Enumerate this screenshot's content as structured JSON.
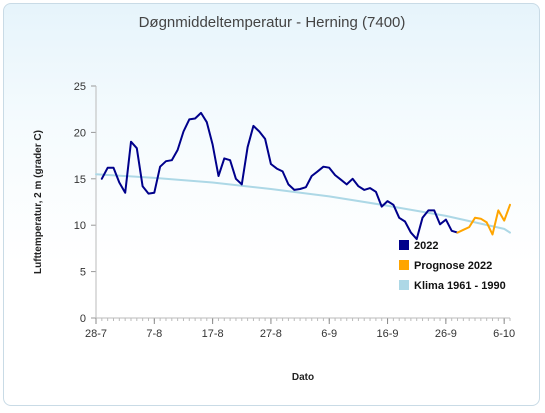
{
  "chart_data": {
    "type": "line",
    "title": "Døgnmiddeltemperatur - Herning (7400)",
    "xlabel": "Dato",
    "ylabel": "Lufttemperatur, 2 m (grader C)",
    "ylim": [
      0,
      25
    ],
    "yticks": [
      0,
      5,
      10,
      15,
      20,
      25
    ],
    "x_ticks": [
      "28-7",
      "7-8",
      "17-8",
      "27-8",
      "6-9",
      "16-9",
      "26-9",
      "6-10"
    ],
    "grid": false,
    "legend_position": "lower-right-inside",
    "series": [
      {
        "name": "2022",
        "color": "#00008b",
        "x": [
          "2022-07-29",
          "2022-07-30",
          "2022-07-31",
          "2022-08-01",
          "2022-08-02",
          "2022-08-03",
          "2022-08-04",
          "2022-08-05",
          "2022-08-06",
          "2022-08-07",
          "2022-08-08",
          "2022-08-09",
          "2022-08-10",
          "2022-08-11",
          "2022-08-12",
          "2022-08-13",
          "2022-08-14",
          "2022-08-15",
          "2022-08-16",
          "2022-08-17",
          "2022-08-18",
          "2022-08-19",
          "2022-08-20",
          "2022-08-21",
          "2022-08-22",
          "2022-08-23",
          "2022-08-24",
          "2022-08-25",
          "2022-08-26",
          "2022-08-27",
          "2022-08-28",
          "2022-08-29",
          "2022-08-30",
          "2022-08-31",
          "2022-09-01",
          "2022-09-02",
          "2022-09-03",
          "2022-09-04",
          "2022-09-05",
          "2022-09-06",
          "2022-09-07",
          "2022-09-08",
          "2022-09-09",
          "2022-09-10",
          "2022-09-11",
          "2022-09-12",
          "2022-09-13",
          "2022-09-14",
          "2022-09-15",
          "2022-09-16",
          "2022-09-17",
          "2022-09-18",
          "2022-09-19",
          "2022-09-20",
          "2022-09-21",
          "2022-09-22",
          "2022-09-23",
          "2022-09-24",
          "2022-09-25",
          "2022-09-26",
          "2022-09-27",
          "2022-09-28"
        ],
        "values": [
          15.0,
          16.2,
          16.2,
          14.6,
          13.5,
          19.0,
          18.3,
          14.2,
          13.4,
          13.5,
          16.3,
          16.9,
          17.0,
          18.1,
          20.1,
          21.4,
          21.5,
          22.1,
          21.1,
          18.7,
          15.3,
          17.2,
          17.0,
          15.0,
          14.4,
          18.4,
          20.7,
          20.1,
          19.3,
          16.6,
          16.1,
          15.8,
          14.4,
          13.8,
          13.9,
          14.1,
          15.3,
          15.8,
          16.3,
          16.2,
          15.4,
          14.9,
          14.4,
          15.0,
          14.2,
          13.8,
          14.0,
          13.6,
          12.0,
          12.6,
          12.2,
          10.8,
          10.4,
          9.2,
          8.5,
          10.8,
          11.6,
          11.6,
          10.1,
          10.6,
          9.4,
          9.2
        ]
      },
      {
        "name": "Prognose 2022",
        "color": "#ffa500",
        "x": [
          "2022-09-28",
          "2022-09-29",
          "2022-09-30",
          "2022-10-01",
          "2022-10-02",
          "2022-10-03",
          "2022-10-04",
          "2022-10-05",
          "2022-10-06",
          "2022-10-07"
        ],
        "values": [
          9.2,
          9.5,
          9.8,
          10.8,
          10.7,
          10.3,
          9.0,
          11.6,
          10.5,
          12.2
        ]
      },
      {
        "name": "Klima 1961 - 1990",
        "color": "#add8e6",
        "x": [
          "2022-07-28",
          "2022-08-07",
          "2022-08-17",
          "2022-08-27",
          "2022-09-06",
          "2022-09-16",
          "2022-09-26",
          "2022-10-06",
          "2022-10-07"
        ],
        "values": [
          15.5,
          15.1,
          14.6,
          13.9,
          13.1,
          12.1,
          11.0,
          9.6,
          9.2
        ]
      }
    ]
  }
}
